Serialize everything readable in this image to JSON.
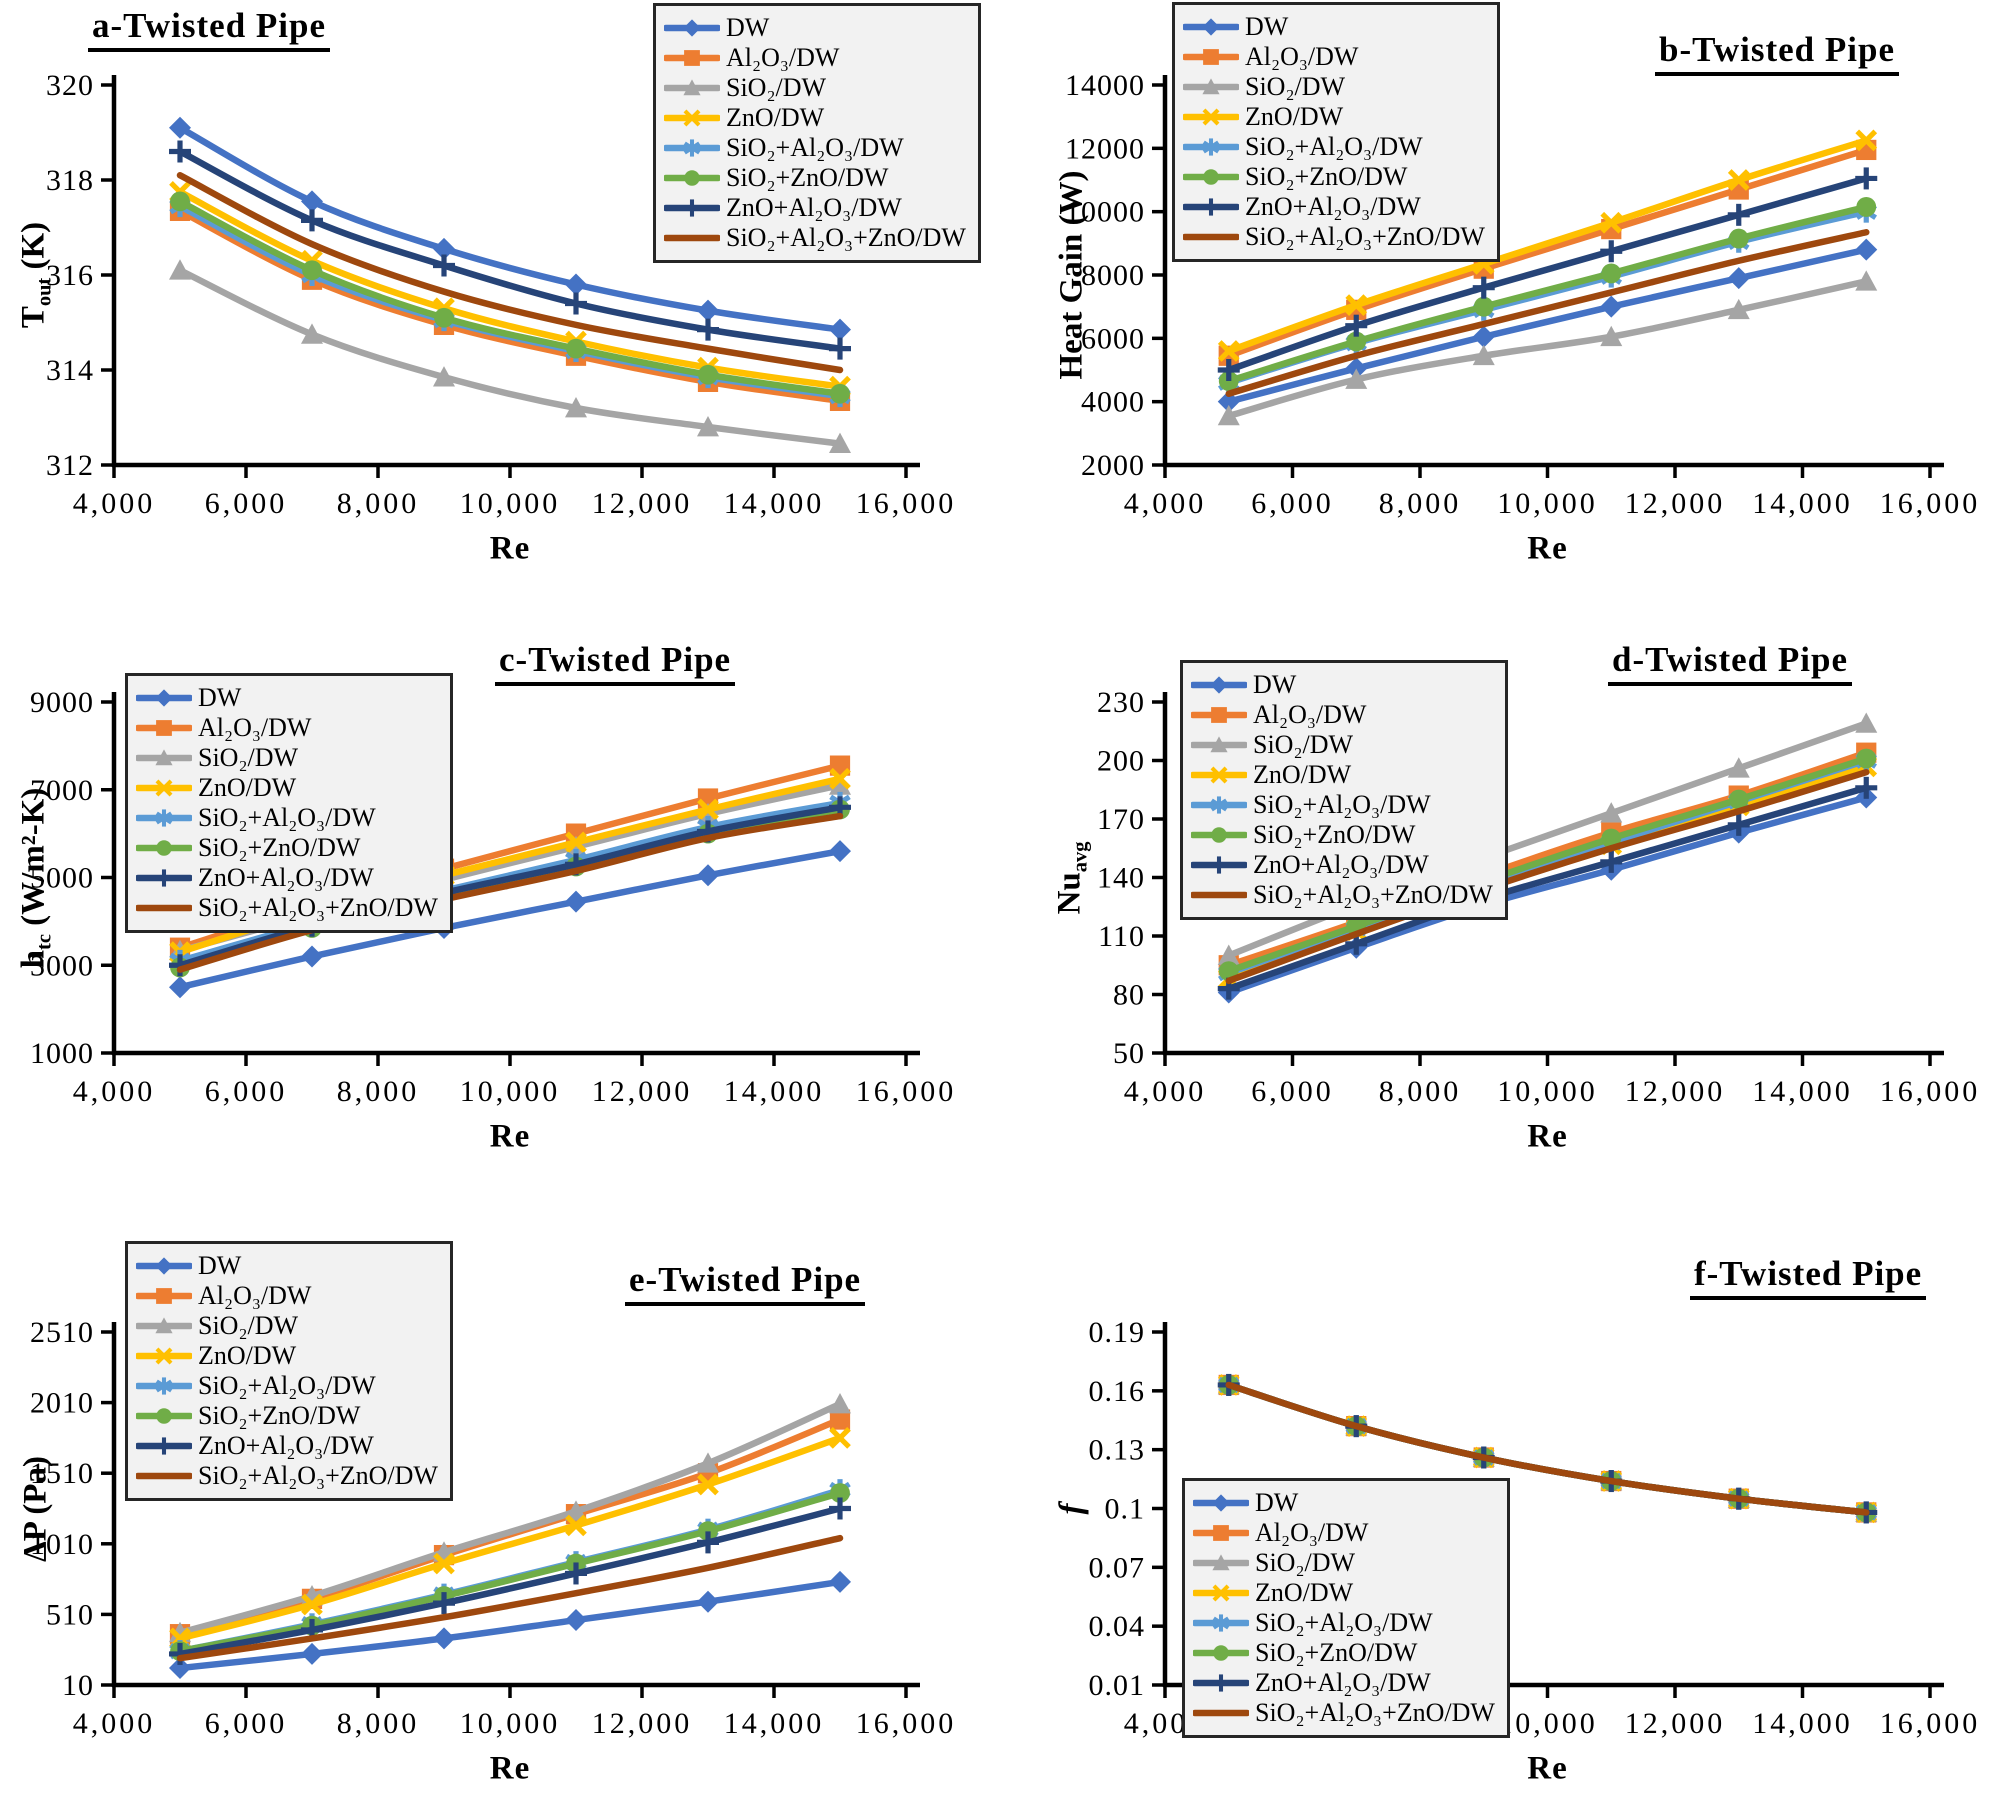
{
  "figure": {
    "background": "#ffffff",
    "x_axis_label": "Re"
  },
  "palette": [
    {
      "name": "DW",
      "color": "#4472C4",
      "marker": "diamond"
    },
    {
      "name": "Al₂O₃/DW",
      "color": "#ED7D31",
      "marker": "square"
    },
    {
      "name": "SiO₂/DW",
      "color": "#A5A5A5",
      "marker": "triangle"
    },
    {
      "name": "ZnO/DW",
      "color": "#FFC000",
      "marker": "x"
    },
    {
      "name": "SiO₂+Al₂O₃/DW",
      "color": "#5B9BD5",
      "marker": "star"
    },
    {
      "name": "SiO₂+ZnO/DW",
      "color": "#70AD47",
      "marker": "circle"
    },
    {
      "name": "ZnO+Al₂O₃/DW",
      "color": "#264478",
      "marker": "plus"
    },
    {
      "name": "SiO₂+Al₂O₃+ZnO/DW",
      "color": "#9E480E",
      "marker": "none"
    }
  ],
  "chart_data": [
    {
      "id": "a",
      "type": "line",
      "title": "a-Twisted Pipe",
      "xlabel": "Re",
      "ylabel_parts": [
        {
          "t": "T"
        },
        {
          "t": "out",
          "s": "sub"
        },
        {
          "t": " (K)"
        }
      ],
      "x": [
        5000,
        7000,
        9000,
        11000,
        13000,
        15000
      ],
      "xlim": [
        4000,
        16000
      ],
      "xticks": [
        {
          "v": 4000,
          "l": "4,000"
        },
        {
          "v": 6000,
          "l": "6,000"
        },
        {
          "v": 8000,
          "l": "8,000"
        },
        {
          "v": 10000,
          "l": "10,000"
        },
        {
          "v": 12000,
          "l": "12,000"
        },
        {
          "v": 14000,
          "l": "14,000"
        },
        {
          "v": 16000,
          "l": "16,000"
        }
      ],
      "ylim": [
        312,
        320
      ],
      "yticks": [
        {
          "v": 312,
          "l": "312"
        },
        {
          "v": 314,
          "l": "314"
        },
        {
          "v": 316,
          "l": "316"
        },
        {
          "v": 318,
          "l": "318"
        },
        {
          "v": 320,
          "l": "320"
        }
      ],
      "legend_position": "top-right-inside",
      "series": [
        {
          "name": "DW",
          "values": [
            319.1,
            317.55,
            316.55,
            315.8,
            315.25,
            314.85
          ]
        },
        {
          "name": "Al₂O₃/DW",
          "values": [
            317.35,
            315.9,
            314.95,
            314.3,
            313.75,
            313.35
          ]
        },
        {
          "name": "SiO₂/DW",
          "values": [
            316.1,
            314.75,
            313.85,
            313.2,
            312.8,
            312.45
          ]
        },
        {
          "name": "ZnO/DW",
          "values": [
            317.75,
            316.3,
            315.3,
            314.6,
            314.05,
            313.65
          ]
        },
        {
          "name": "SiO₂+Al₂O₃/DW",
          "values": [
            317.45,
            316.0,
            315.05,
            314.4,
            313.85,
            313.45
          ]
        },
        {
          "name": "SiO₂+ZnO/DW",
          "values": [
            317.55,
            316.1,
            315.1,
            314.45,
            313.9,
            313.5
          ]
        },
        {
          "name": "ZnO+Al₂O₃/DW",
          "values": [
            318.6,
            317.15,
            316.2,
            315.4,
            314.85,
            314.45
          ]
        },
        {
          "name": "SiO₂+Al₂O₃+ZnO/DW",
          "values": [
            318.1,
            316.65,
            315.65,
            314.95,
            314.45,
            314.0
          ]
        }
      ]
    },
    {
      "id": "b",
      "type": "line",
      "title": "b-Twisted Pipe",
      "xlabel": "Re",
      "ylabel_parts": [
        {
          "t": "Heat Gain (W)"
        }
      ],
      "x": [
        5000,
        7000,
        9000,
        11000,
        13000,
        15000
      ],
      "xlim": [
        4000,
        16000
      ],
      "xticks": [
        {
          "v": 4000,
          "l": "4,000"
        },
        {
          "v": 6000,
          "l": "6,000"
        },
        {
          "v": 8000,
          "l": "8,000"
        },
        {
          "v": 10000,
          "l": "10,000"
        },
        {
          "v": 12000,
          "l": "12,000"
        },
        {
          "v": 14000,
          "l": "14,000"
        },
        {
          "v": 16000,
          "l": "16,000"
        }
      ],
      "ylim": [
        2000,
        14000
      ],
      "yticks": [
        {
          "v": 2000,
          "l": "2000"
        },
        {
          "v": 4000,
          "l": "4000"
        },
        {
          "v": 6000,
          "l": "6000"
        },
        {
          "v": 8000,
          "l": "8000"
        },
        {
          "v": 10000,
          "l": "10000"
        },
        {
          "v": 12000,
          "l": "12000"
        },
        {
          "v": 14000,
          "l": "14000"
        }
      ],
      "legend_position": "top-left-inside",
      "series": [
        {
          "name": "DW",
          "values": [
            4000,
            5050,
            6050,
            7000,
            7900,
            8800
          ]
        },
        {
          "name": "Al₂O₃/DW",
          "values": [
            5450,
            6900,
            8200,
            9450,
            10700,
            11950
          ]
        },
        {
          "name": "SiO₂/DW",
          "values": [
            3550,
            4700,
            5450,
            6050,
            6900,
            7800
          ]
        },
        {
          "name": "ZnO/DW",
          "values": [
            5600,
            7050,
            8350,
            9650,
            11000,
            12250
          ]
        },
        {
          "name": "SiO₂+Al₂O₃/DW",
          "values": [
            4600,
            5850,
            6900,
            7950,
            9050,
            10000
          ]
        },
        {
          "name": "SiO₂+ZnO/DW",
          "values": [
            4650,
            5900,
            7000,
            8050,
            9150,
            10150
          ]
        },
        {
          "name": "ZnO+Al₂O₃/DW",
          "values": [
            5000,
            6400,
            7600,
            8750,
            9900,
            11050
          ]
        },
        {
          "name": "SiO₂+Al₂O₃+ZnO/DW",
          "values": [
            4250,
            5450,
            6450,
            7450,
            8450,
            9350
          ]
        }
      ]
    },
    {
      "id": "c",
      "type": "line",
      "title": "c-Twisted Pipe",
      "xlabel": "Re",
      "ylabel_parts": [
        {
          "t": "h"
        },
        {
          "t": "tc",
          "s": "sub"
        },
        {
          "t": " (W/m²-K)"
        }
      ],
      "x": [
        5000,
        7000,
        9000,
        11000,
        13000,
        15000
      ],
      "xlim": [
        4000,
        16000
      ],
      "xticks": [
        {
          "v": 4000,
          "l": "4,000"
        },
        {
          "v": 6000,
          "l": "6,000"
        },
        {
          "v": 8000,
          "l": "8,000"
        },
        {
          "v": 10000,
          "l": "10,000"
        },
        {
          "v": 12000,
          "l": "12,000"
        },
        {
          "v": 14000,
          "l": "14,000"
        },
        {
          "v": 16000,
          "l": "16,000"
        }
      ],
      "ylim": [
        1000,
        9000
      ],
      "yticks": [
        {
          "v": 1000,
          "l": "1000"
        },
        {
          "v": 3000,
          "l": "3000"
        },
        {
          "v": 5000,
          "l": "5000"
        },
        {
          "v": 7000,
          "l": "7000"
        },
        {
          "v": 9000,
          "l": "9000"
        }
      ],
      "legend_position": "top-left-inside",
      "series": [
        {
          "name": "DW",
          "values": [
            2500,
            3200,
            3850,
            4450,
            5050,
            5600
          ]
        },
        {
          "name": "Al₂O₃/DW",
          "values": [
            3400,
            4350,
            5200,
            6000,
            6800,
            7550
          ]
        },
        {
          "name": "SiO₂/DW",
          "values": [
            3330,
            4150,
            4950,
            5700,
            6450,
            7100
          ]
        },
        {
          "name": "ZnO/DW",
          "values": [
            3300,
            4250,
            5050,
            5800,
            6550,
            7250
          ]
        },
        {
          "name": "SiO₂+Al₂O₃/DW",
          "values": [
            3100,
            3950,
            4700,
            5400,
            6150,
            6700
          ]
        },
        {
          "name": "SiO₂+ZnO/DW",
          "values": [
            2950,
            3850,
            4600,
            5250,
            6000,
            6550
          ]
        },
        {
          "name": "ZnO+Al₂O₃/DW",
          "values": [
            3000,
            3900,
            4650,
            5300,
            6050,
            6600
          ]
        },
        {
          "name": "SiO₂+Al₂O₃+ZnO/DW",
          "values": [
            2900,
            3800,
            4500,
            5150,
            5900,
            6400
          ]
        }
      ]
    },
    {
      "id": "d",
      "type": "line",
      "title": "d-Twisted Pipe",
      "xlabel": "Re",
      "ylabel_parts": [
        {
          "t": "Nu"
        },
        {
          "t": "avg",
          "s": "sub"
        }
      ],
      "x": [
        5000,
        7000,
        9000,
        11000,
        13000,
        15000
      ],
      "xlim": [
        4000,
        16000
      ],
      "xticks": [
        {
          "v": 4000,
          "l": "4,000"
        },
        {
          "v": 6000,
          "l": "6,000"
        },
        {
          "v": 8000,
          "l": "8,000"
        },
        {
          "v": 10000,
          "l": "10,000"
        },
        {
          "v": 12000,
          "l": "12,000"
        },
        {
          "v": 14000,
          "l": "14,000"
        },
        {
          "v": 16000,
          "l": "16,000"
        }
      ],
      "ylim": [
        50,
        230
      ],
      "yticks": [
        {
          "v": 50,
          "l": "50"
        },
        {
          "v": 80,
          "l": "80"
        },
        {
          "v": 110,
          "l": "110"
        },
        {
          "v": 140,
          "l": "140"
        },
        {
          "v": 170,
          "l": "170"
        },
        {
          "v": 200,
          "l": "200"
        },
        {
          "v": 230,
          "l": "230"
        }
      ],
      "legend_position": "top-left-inside",
      "series": [
        {
          "name": "DW",
          "values": [
            81,
            104,
            126,
            144,
            163,
            181
          ]
        },
        {
          "name": "Al₂O₃/DW",
          "values": [
            95,
            117,
            141,
            163,
            182,
            204
          ]
        },
        {
          "name": "SiO₂/DW",
          "values": [
            100,
            126,
            150,
            173,
            196,
            219
          ]
        },
        {
          "name": "ZnO/DW",
          "values": [
            88,
            113,
            136,
            157,
            177,
            197
          ]
        },
        {
          "name": "SiO₂+Al₂O₃/DW",
          "values": [
            91,
            114,
            137,
            158,
            179,
            200
          ]
        },
        {
          "name": "SiO₂+ZnO/DW",
          "values": [
            92,
            115,
            138,
            160,
            180,
            201
          ]
        },
        {
          "name": "ZnO+Al₂O₃/DW",
          "values": [
            83,
            106,
            129,
            148,
            167,
            186
          ]
        },
        {
          "name": "SiO₂+Al₂O₃+ZnO/DW",
          "values": [
            87,
            111,
            134,
            155,
            174,
            194
          ]
        }
      ]
    },
    {
      "id": "e",
      "type": "line",
      "title": "e-Twisted Pipe",
      "xlabel": "Re",
      "ylabel_parts": [
        {
          "t": "ΔP (Pa)"
        }
      ],
      "x": [
        5000,
        7000,
        9000,
        11000,
        13000,
        15000
      ],
      "xlim": [
        4000,
        16000
      ],
      "xticks": [
        {
          "v": 4000,
          "l": "4,000"
        },
        {
          "v": 6000,
          "l": "6,000"
        },
        {
          "v": 8000,
          "l": "8,000"
        },
        {
          "v": 10000,
          "l": "10,000"
        },
        {
          "v": 12000,
          "l": "12,000"
        },
        {
          "v": 14000,
          "l": "14,000"
        },
        {
          "v": 16000,
          "l": "16,000"
        }
      ],
      "ylim": [
        10,
        2510
      ],
      "yticks": [
        {
          "v": 10,
          "l": "10"
        },
        {
          "v": 510,
          "l": "510"
        },
        {
          "v": 1010,
          "l": "1010"
        },
        {
          "v": 1510,
          "l": "1510"
        },
        {
          "v": 2010,
          "l": "2010"
        },
        {
          "v": 2510,
          "l": "2510"
        }
      ],
      "legend_position": "top-left-inside",
      "series": [
        {
          "name": "DW",
          "values": [
            130,
            230,
            340,
            470,
            600,
            740
          ]
        },
        {
          "name": "Al₂O₃/DW",
          "values": [
            370,
            620,
            930,
            1220,
            1510,
            1890
          ]
        },
        {
          "name": "SiO₂/DW",
          "values": [
            380,
            640,
            950,
            1240,
            1580,
            2000
          ]
        },
        {
          "name": "ZnO/DW",
          "values": [
            340,
            580,
            870,
            1140,
            1430,
            1760
          ]
        },
        {
          "name": "SiO₂+Al₂O₃/DW",
          "values": [
            250,
            440,
            650,
            880,
            1110,
            1390
          ]
        },
        {
          "name": "SiO₂+ZnO/DW",
          "values": [
            250,
            430,
            640,
            870,
            1100,
            1370
          ]
        },
        {
          "name": "ZnO+Al₂O₃/DW",
          "values": [
            230,
            400,
            590,
            800,
            1020,
            1260
          ]
        },
        {
          "name": "SiO₂+Al₂O₃+ZnO/DW",
          "values": [
            200,
            340,
            490,
            660,
            840,
            1050
          ]
        }
      ]
    },
    {
      "id": "f",
      "type": "line",
      "title": "f-Twisted Pipe",
      "xlabel": "Re",
      "ylabel_parts": [
        {
          "t": "f",
          "s": "i"
        }
      ],
      "x": [
        5000,
        7000,
        9000,
        11000,
        13000,
        15000
      ],
      "xlim": [
        4000,
        16000
      ],
      "xticks": [
        {
          "v": 4000,
          "l": "4,000"
        },
        {
          "v": 6000,
          "l": "6,000"
        },
        {
          "v": 8000,
          "l": "8,000"
        },
        {
          "v": 10000,
          "l": "10,000"
        },
        {
          "v": 12000,
          "l": "12,000"
        },
        {
          "v": 14000,
          "l": "14,000"
        },
        {
          "v": 16000,
          "l": "16,000"
        }
      ],
      "ylim": [
        0.01,
        0.19
      ],
      "yticks": [
        {
          "v": 0.01,
          "l": "0.01"
        },
        {
          "v": 0.04,
          "l": "0.04"
        },
        {
          "v": 0.07,
          "l": "0.07"
        },
        {
          "v": 0.1,
          "l": "0.1"
        },
        {
          "v": 0.13,
          "l": "0.13"
        },
        {
          "v": 0.16,
          "l": "0.16"
        },
        {
          "v": 0.19,
          "l": "0.19"
        }
      ],
      "legend_position": "bottom-left-inside",
      "note": "all eight series coincide on one curve",
      "series": [
        {
          "name": "DW",
          "values": [
            0.163,
            0.142,
            0.126,
            0.114,
            0.105,
            0.098
          ]
        },
        {
          "name": "Al₂O₃/DW",
          "values": [
            0.163,
            0.142,
            0.126,
            0.114,
            0.105,
            0.098
          ]
        },
        {
          "name": "SiO₂/DW",
          "values": [
            0.163,
            0.142,
            0.126,
            0.114,
            0.105,
            0.098
          ]
        },
        {
          "name": "ZnO/DW",
          "values": [
            0.163,
            0.142,
            0.126,
            0.114,
            0.105,
            0.098
          ]
        },
        {
          "name": "SiO₂+Al₂O₃/DW",
          "values": [
            0.163,
            0.142,
            0.126,
            0.114,
            0.105,
            0.098
          ]
        },
        {
          "name": "SiO₂+ZnO/DW",
          "values": [
            0.163,
            0.142,
            0.126,
            0.114,
            0.105,
            0.098
          ]
        },
        {
          "name": "ZnO+Al₂O₃/DW",
          "values": [
            0.163,
            0.142,
            0.126,
            0.114,
            0.105,
            0.098
          ]
        },
        {
          "name": "SiO₂+Al₂O₃+ZnO/DW",
          "values": [
            0.163,
            0.142,
            0.126,
            0.114,
            0.105,
            0.098
          ]
        }
      ]
    }
  ]
}
